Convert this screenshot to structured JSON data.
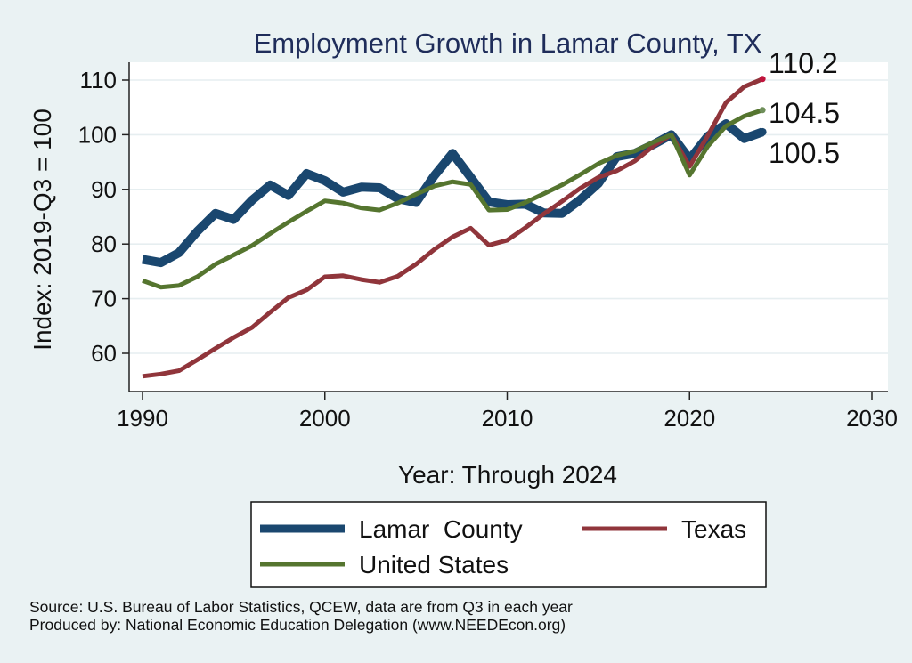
{
  "chart_data": {
    "type": "line",
    "title": "Employment Growth in Lamar County, TX",
    "xlabel": "Year: Through 2024",
    "ylabel": "Index: 2019-Q3 = 100",
    "xlim": [
      1990,
      2030
    ],
    "ylim": [
      55,
      113
    ],
    "x_ticks": [
      1990,
      2000,
      2010,
      2020,
      2030
    ],
    "y_ticks": [
      60,
      70,
      80,
      90,
      100,
      110
    ],
    "x": [
      1990,
      1991,
      1992,
      1993,
      1994,
      1995,
      1996,
      1997,
      1998,
      1999,
      2000,
      2001,
      2002,
      2003,
      2004,
      2005,
      2006,
      2007,
      2008,
      2009,
      2010,
      2011,
      2012,
      2013,
      2014,
      2015,
      2016,
      2017,
      2018,
      2019,
      2020,
      2021,
      2022,
      2023,
      2024
    ],
    "series": [
      {
        "name": "Lamar  County",
        "color": "#1a476f",
        "values": [
          77.2,
          76.6,
          78.4,
          82.3,
          85.6,
          84.5,
          88.0,
          90.8,
          88.9,
          92.9,
          91.6,
          89.5,
          90.4,
          90.3,
          88.3,
          87.6,
          92.5,
          96.6,
          92.2,
          87.7,
          87.2,
          87.3,
          85.7,
          85.6,
          88.1,
          91.1,
          96.0,
          96.6,
          98.2,
          100.0,
          95.5,
          99.7,
          102.0,
          99.3,
          100.5
        ]
      },
      {
        "name": "Texas",
        "color": "#90353b",
        "values": [
          55.8,
          56.2,
          56.8,
          58.8,
          60.9,
          62.9,
          64.7,
          67.5,
          70.2,
          71.6,
          74.0,
          74.2,
          73.5,
          73.0,
          74.1,
          76.3,
          79.0,
          81.3,
          82.9,
          79.8,
          80.7,
          83.0,
          85.5,
          87.8,
          90.2,
          92.2,
          93.4,
          95.2,
          97.9,
          100.0,
          94.2,
          99.8,
          105.9,
          108.8,
          110.2
        ]
      },
      {
        "name": "United States",
        "color": "#55752f",
        "values": [
          73.3,
          72.1,
          72.4,
          74.0,
          76.3,
          78.0,
          79.7,
          81.9,
          84.0,
          86.0,
          87.9,
          87.5,
          86.6,
          86.2,
          87.5,
          89.1,
          90.6,
          91.4,
          90.9,
          86.2,
          86.3,
          87.6,
          89.2,
          90.8,
          92.7,
          94.7,
          96.2,
          97.0,
          98.6,
          100.0,
          92.6,
          97.9,
          101.6,
          103.4,
          104.5
        ]
      }
    ],
    "end_labels": [
      "110.2",
      "104.5",
      "100.5"
    ],
    "end_label_colors": [
      "#c0143c",
      "#6f8f5a",
      "#1a476f"
    ],
    "source_lines": [
      "Source: U.S. Bureau of Labor Statistics, QCEW, data are from Q3 in each year",
      "Produced by: National Economic Education Delegation (www.NEEDEcon.org)"
    ]
  }
}
